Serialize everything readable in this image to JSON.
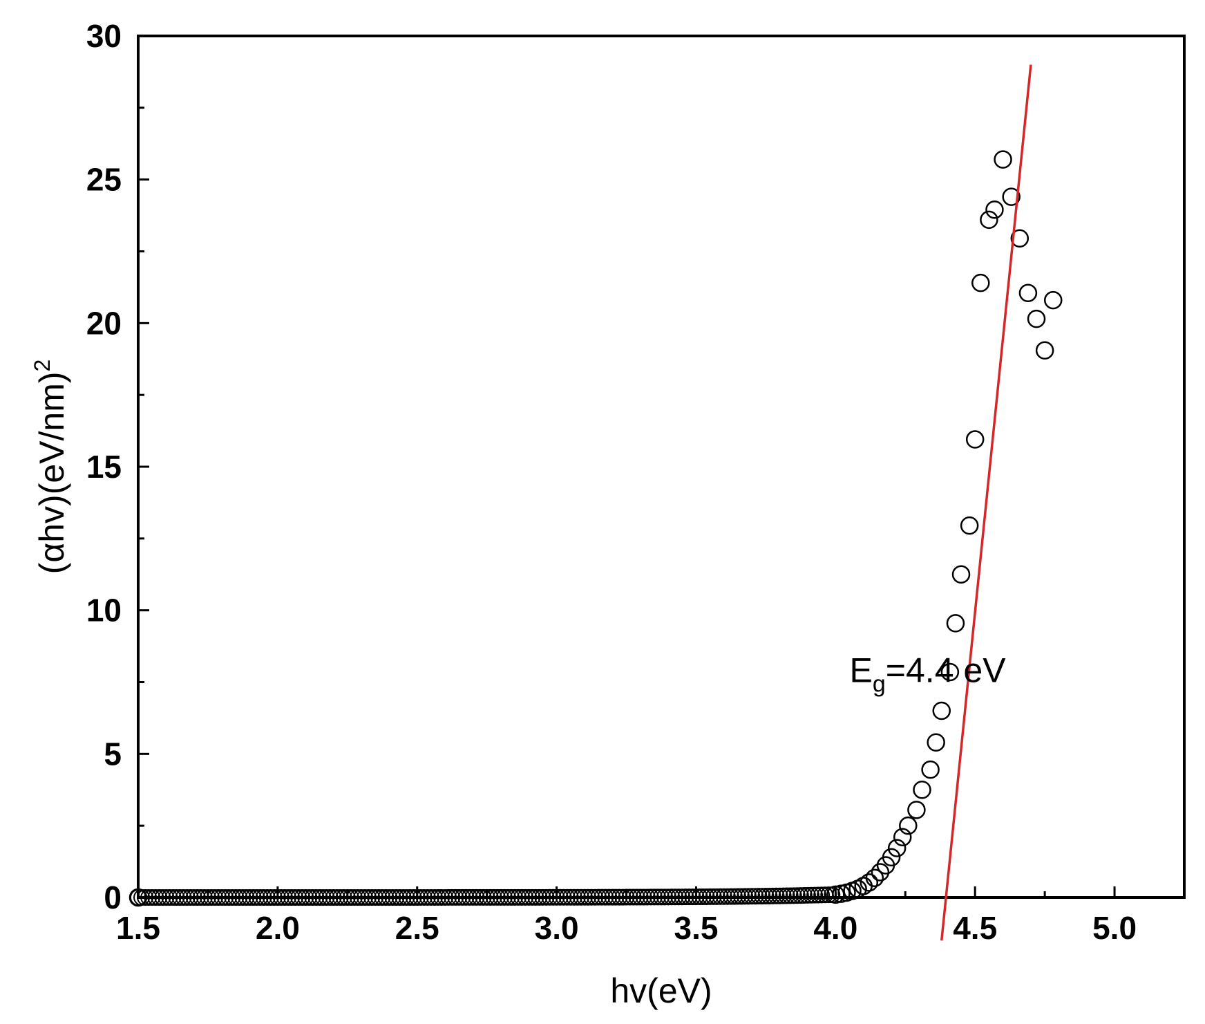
{
  "chart_data": {
    "type": "scatter",
    "title": "",
    "xlabel": "hv(eV)",
    "ylabel_main": "(αhv)(eV/nm)",
    "ylabel_sup": "2",
    "xlim": [
      1.5,
      5.25
    ],
    "ylim": [
      0,
      30
    ],
    "xticks": [
      1.5,
      2.0,
      2.5,
      3.0,
      3.5,
      4.0,
      4.5,
      5.0
    ],
    "xtick_labels": [
      "1.5",
      "2.0",
      "2.5",
      "3.0",
      "3.5",
      "4.0",
      "4.5",
      "5.0"
    ],
    "yticks": [
      0,
      5,
      10,
      15,
      20,
      25,
      30
    ],
    "ytick_labels": [
      "0",
      "5",
      "10",
      "15",
      "20",
      "25",
      "30"
    ],
    "grid": false,
    "annotation": {
      "main": "E",
      "sub": "g",
      "rest": "=4.4 eV",
      "x": 4.05,
      "y": 7.5
    },
    "fit_line": {
      "color": "#d62728",
      "x": [
        4.38,
        4.7
      ],
      "y": [
        -1.5,
        29.0
      ]
    },
    "marker_color": "#000000",
    "series": [
      {
        "marker": "open-circle",
        "points": [
          [
            1.5,
            0.0
          ],
          [
            4.0,
            0.1
          ],
          [
            4.02,
            0.13
          ],
          [
            4.04,
            0.17
          ],
          [
            4.06,
            0.23
          ],
          [
            4.08,
            0.3
          ],
          [
            4.1,
            0.4
          ],
          [
            4.12,
            0.52
          ],
          [
            4.14,
            0.68
          ],
          [
            4.16,
            0.88
          ],
          [
            4.18,
            1.12
          ],
          [
            4.2,
            1.4
          ],
          [
            4.22,
            1.72
          ],
          [
            4.24,
            2.1
          ],
          [
            4.26,
            2.5
          ],
          [
            4.29,
            3.05
          ],
          [
            4.31,
            3.75
          ],
          [
            4.34,
            4.45
          ],
          [
            4.36,
            5.4
          ],
          [
            4.38,
            6.5
          ],
          [
            4.41,
            7.85
          ],
          [
            4.43,
            9.55
          ],
          [
            4.45,
            11.25
          ],
          [
            4.48,
            12.95
          ],
          [
            4.5,
            15.95
          ],
          [
            4.52,
            21.4
          ],
          [
            4.55,
            23.6
          ],
          [
            4.57,
            23.95
          ],
          [
            4.6,
            25.7
          ],
          [
            4.63,
            24.4
          ],
          [
            4.66,
            22.95
          ],
          [
            4.69,
            21.05
          ],
          [
            4.72,
            20.15
          ],
          [
            4.75,
            19.05
          ],
          [
            4.78,
            20.8
          ]
        ]
      }
    ]
  }
}
